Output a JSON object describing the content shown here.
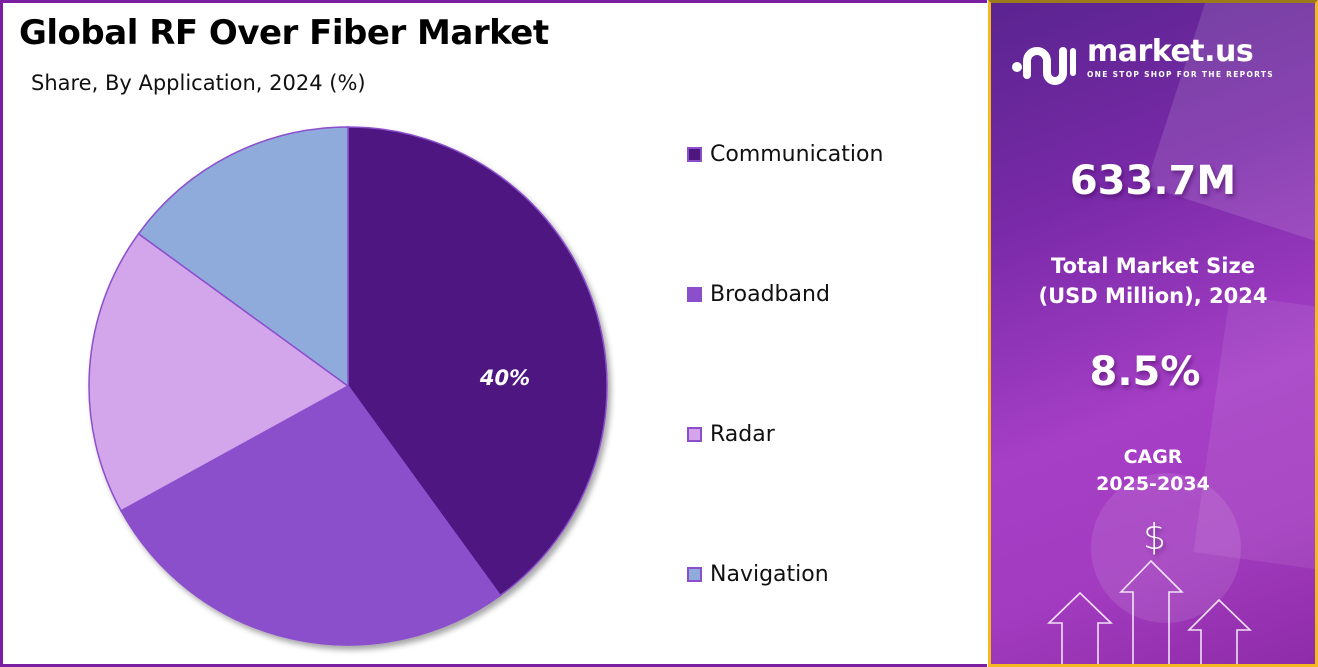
{
  "header": {
    "title": "Global RF Over Fiber Market",
    "subtitle": "Share, By Application, 2024 (%)"
  },
  "chart_data": {
    "type": "pie",
    "title": "Global RF Over Fiber Market",
    "subtitle": "Share, By Application, 2024 (%)",
    "categories": [
      "Communication",
      "Broadband",
      "Radar",
      "Navigation"
    ],
    "values": [
      40,
      27,
      18,
      15
    ],
    "colors": [
      "#4e1780",
      "#8b4fcc",
      "#d3a5ea",
      "#8fabdc"
    ],
    "data_labels": [
      {
        "category": "Communication",
        "text": "40%"
      }
    ],
    "legend_position": "right",
    "start_angle_deg": 0,
    "direction": "clockwise"
  },
  "legend": {
    "items": [
      {
        "label": "Communication",
        "color": "#4e1780"
      },
      {
        "label": "Broadband",
        "color": "#8b4fcc"
      },
      {
        "label": "Radar",
        "color": "#d3a5ea"
      },
      {
        "label": "Navigation",
        "color": "#8fabdc"
      }
    ]
  },
  "pie_label": "40%",
  "sidebar": {
    "brand": {
      "name": "market.us",
      "tagline": "ONE STOP SHOP FOR THE REPORTS",
      "icon": "market-us-logo-icon"
    },
    "market_size": {
      "value": "633.7M",
      "label_line1": "Total Market Size",
      "label_line2": "(USD Million), 2024"
    },
    "cagr": {
      "value": "8.5%",
      "label_line1": "CAGR",
      "label_line2": "2025-2034"
    },
    "decor": {
      "dollar_symbol": "$",
      "icon": "growth-arrows-icon"
    },
    "colors": {
      "panel_start": "#5a2490",
      "panel_mid": "#a63fc6",
      "border": "#f5b820"
    }
  }
}
